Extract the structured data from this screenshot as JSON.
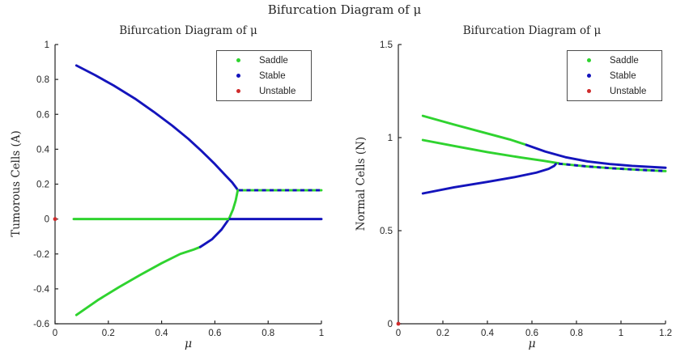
{
  "page": {
    "main_title": "Bifurcation Diagram of μ"
  },
  "palette": {
    "saddle": "#2FD32F",
    "stable": "#1414BC",
    "unstable": "#CF2B2B",
    "axis": "#262626",
    "text": "#262626"
  },
  "legend": {
    "items": [
      {
        "name": "saddle",
        "label": "Saddle"
      },
      {
        "name": "stable",
        "label": "Stable"
      },
      {
        "name": "unstable",
        "label": "Unstable"
      }
    ]
  },
  "chart_data": [
    {
      "type": "line",
      "title": "Bifurcation Diagram of μ",
      "xlabel": "μ",
      "ylabel": "Tumorous Cells (A)",
      "xlim": [
        0,
        1
      ],
      "ylim": [
        -0.6,
        1
      ],
      "xticks": {
        "values": [
          0,
          0.2,
          0.4,
          0.6,
          0.8,
          1
        ],
        "labels": [
          "0",
          "0.2",
          "0.4",
          "0.6",
          "0.8",
          "1"
        ]
      },
      "yticks": {
        "values": [
          -0.6,
          -0.4,
          -0.2,
          0,
          0.2,
          0.4,
          0.6,
          0.8,
          1
        ],
        "labels": [
          "-0.6",
          "-0.4",
          "-0.2",
          "0",
          "0.2",
          "0.4",
          "0.6",
          "0.8",
          "1"
        ]
      },
      "grid": false,
      "legend_position": "top-right",
      "series": [
        {
          "name": "stable-upper-branch",
          "role": "stable",
          "style": "solid",
          "points": [
            [
              0.08,
              0.88
            ],
            [
              0.15,
              0.825
            ],
            [
              0.22,
              0.765
            ],
            [
              0.3,
              0.69
            ],
            [
              0.37,
              0.615
            ],
            [
              0.44,
              0.535
            ],
            [
              0.5,
              0.46
            ],
            [
              0.55,
              0.39
            ],
            [
              0.6,
              0.315
            ],
            [
              0.64,
              0.25
            ],
            [
              0.665,
              0.21
            ],
            [
              0.682,
              0.175
            ],
            [
              0.686,
              0.165
            ]
          ]
        },
        {
          "name": "saddle-lower-branch",
          "role": "saddle",
          "style": "solid",
          "points": [
            [
              0.08,
              -0.55
            ],
            [
              0.16,
              -0.465
            ],
            [
              0.24,
              -0.39
            ],
            [
              0.32,
              -0.32
            ],
            [
              0.4,
              -0.253
            ],
            [
              0.47,
              -0.2
            ],
            [
              0.52,
              -0.175
            ],
            [
              0.545,
              -0.16
            ]
          ]
        },
        {
          "name": "stable-lower-branch",
          "role": "stable",
          "style": "solid",
          "points": [
            [
              0.545,
              -0.16
            ],
            [
              0.59,
              -0.115
            ],
            [
              0.625,
              -0.06
            ],
            [
              0.648,
              -0.01
            ],
            [
              0.654,
              0.005
            ]
          ]
        },
        {
          "name": "saddle-fold-segment",
          "role": "saddle",
          "style": "solid",
          "points": [
            [
              0.654,
              0.005
            ],
            [
              0.668,
              0.055
            ],
            [
              0.678,
              0.105
            ],
            [
              0.684,
              0.15
            ],
            [
              0.686,
              0.165
            ]
          ]
        },
        {
          "name": "saddle-zero-line",
          "role": "saddle",
          "style": "solid",
          "points": [
            [
              0.07,
              0
            ],
            [
              0.657,
              0
            ]
          ]
        },
        {
          "name": "stable-zero-line",
          "role": "stable",
          "style": "solid",
          "points": [
            [
              0.657,
              0
            ],
            [
              1,
              0
            ]
          ]
        },
        {
          "name": "overlap-line-saddle",
          "role": "saddle",
          "style": "solid",
          "points": [
            [
              0.69,
              0.165
            ],
            [
              1,
              0.165
            ]
          ]
        },
        {
          "name": "overlap-line-stable",
          "role": "stable",
          "style": "dashed",
          "points": [
            [
              0.69,
              0.165
            ],
            [
              1,
              0.165
            ]
          ]
        },
        {
          "name": "unstable-origin-point",
          "role": "unstable",
          "style": "marker",
          "points": [
            [
              0,
              0
            ]
          ]
        }
      ]
    },
    {
      "type": "line",
      "title": "Bifurcation Diagram of μ",
      "xlabel": "μ",
      "ylabel": "Normal Cells (N)",
      "xlim": [
        0,
        1.2
      ],
      "ylim": [
        0,
        1.5
      ],
      "xticks": {
        "values": [
          0,
          0.2,
          0.4,
          0.6,
          0.8,
          1,
          1.2
        ],
        "labels": [
          "0",
          "0.2",
          "0.4",
          "0.6",
          "0.8",
          "1",
          "1.2"
        ]
      },
      "yticks": {
        "values": [
          0,
          0.5,
          1,
          1.5
        ],
        "labels": [
          "0",
          "0.5",
          "1",
          "1.5"
        ]
      },
      "grid": false,
      "legend_position": "top-right",
      "series": [
        {
          "name": "saddle-upper-line",
          "role": "saddle",
          "style": "solid",
          "points": [
            [
              0.11,
              1.117
            ],
            [
              0.25,
              1.07
            ],
            [
              0.4,
              1.022
            ],
            [
              0.5,
              0.99
            ],
            [
              0.575,
              0.961
            ]
          ]
        },
        {
          "name": "stable-upper-line",
          "role": "stable",
          "style": "solid",
          "points": [
            [
              0.575,
              0.961
            ],
            [
              0.66,
              0.925
            ],
            [
              0.75,
              0.895
            ],
            [
              0.85,
              0.872
            ],
            [
              0.95,
              0.858
            ],
            [
              1.05,
              0.848
            ],
            [
              1.2,
              0.838
            ]
          ]
        },
        {
          "name": "saddle-middle-line",
          "role": "saddle",
          "style": "solid",
          "points": [
            [
              0.11,
              0.987
            ],
            [
              0.25,
              0.955
            ],
            [
              0.4,
              0.922
            ],
            [
              0.55,
              0.893
            ],
            [
              0.65,
              0.876
            ],
            [
              0.72,
              0.862
            ]
          ]
        },
        {
          "name": "stable-lower-curve",
          "role": "stable",
          "style": "solid",
          "points": [
            [
              0.11,
              0.7
            ],
            [
              0.25,
              0.733
            ],
            [
              0.4,
              0.762
            ],
            [
              0.52,
              0.787
            ],
            [
              0.62,
              0.812
            ],
            [
              0.675,
              0.832
            ],
            [
              0.7,
              0.848
            ],
            [
              0.707,
              0.858
            ]
          ]
        },
        {
          "name": "overlap-tail-saddle",
          "role": "saddle",
          "style": "solid",
          "points": [
            [
              0.72,
              0.86
            ],
            [
              0.85,
              0.845
            ],
            [
              0.95,
              0.836
            ],
            [
              1.05,
              0.829
            ],
            [
              1.2,
              0.82
            ]
          ]
        },
        {
          "name": "overlap-tail-stable",
          "role": "stable",
          "style": "dashed",
          "points": [
            [
              0.72,
              0.86
            ],
            [
              0.85,
              0.845
            ],
            [
              0.95,
              0.836
            ],
            [
              1.05,
              0.829
            ],
            [
              1.2,
              0.82
            ]
          ]
        },
        {
          "name": "unstable-origin-point",
          "role": "unstable",
          "style": "marker",
          "points": [
            [
              0,
              0
            ]
          ]
        }
      ]
    }
  ]
}
